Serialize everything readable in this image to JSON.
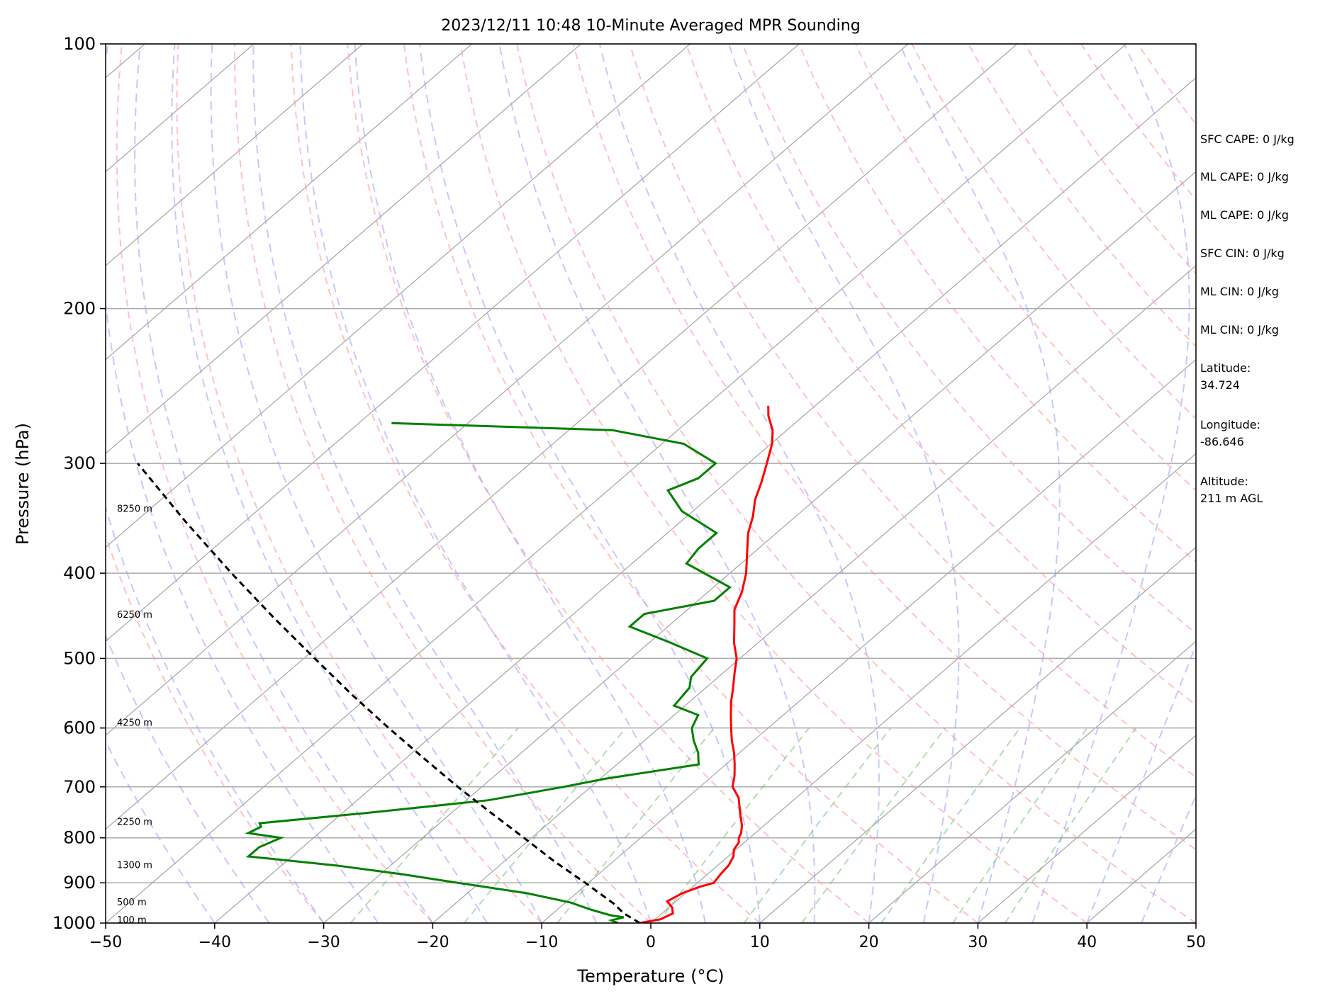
{
  "chart_data": {
    "type": "line",
    "title": "2023/12/11 10:48 10-Minute Averaged MPR Sounding",
    "xlabel": "Temperature (°C)",
    "ylabel": "Pressure (hPa)",
    "xlim": [
      -50,
      50
    ],
    "ylim": [
      1000,
      100
    ],
    "y_scale": "log",
    "skew": "skew-T log-P diagram",
    "x_ticks": [
      "−50",
      "−40",
      "−30",
      "−20",
      "−10",
      "0",
      "10",
      "20",
      "30",
      "40",
      "50"
    ],
    "x_tick_values": [
      -50,
      -40,
      -30,
      -20,
      -10,
      0,
      10,
      20,
      30,
      40,
      50
    ],
    "y_ticks": [
      "100",
      "200",
      "300",
      "400",
      "500",
      "600",
      "700",
      "800",
      "900",
      "1000"
    ],
    "y_tick_values": [
      100,
      200,
      300,
      400,
      500,
      600,
      700,
      800,
      900,
      1000
    ],
    "grid": true,
    "height_labels": [
      {
        "text": "100 m",
        "pressure": 993
      },
      {
        "text": "500 m",
        "pressure": 948
      },
      {
        "text": "1300 m",
        "pressure": 860
      },
      {
        "text": "2250 m",
        "pressure": 768
      },
      {
        "text": "4250 m",
        "pressure": 592
      },
      {
        "text": "6250 m",
        "pressure": 446
      },
      {
        "text": "8250 m",
        "pressure": 338
      }
    ],
    "series": [
      {
        "role": "temperature",
        "color": "#ff0000",
        "points": [
          {
            "p": 1000,
            "t": -1.0
          },
          {
            "p": 990,
            "t": 0.5
          },
          {
            "p": 975,
            "t": 1.0
          },
          {
            "p": 960,
            "t": 0.3
          },
          {
            "p": 945,
            "t": -0.8
          },
          {
            "p": 925,
            "t": -0.3
          },
          {
            "p": 910,
            "t": 0.6
          },
          {
            "p": 900,
            "t": 1.5
          },
          {
            "p": 880,
            "t": 1.2
          },
          {
            "p": 860,
            "t": 1.0
          },
          {
            "p": 840,
            "t": 0.5
          },
          {
            "p": 825,
            "t": -0.2
          },
          {
            "p": 810,
            "t": -0.5
          },
          {
            "p": 800,
            "t": -1.0
          },
          {
            "p": 790,
            "t": -1.3
          },
          {
            "p": 775,
            "t": -2.0
          },
          {
            "p": 750,
            "t": -3.5
          },
          {
            "p": 720,
            "t": -5.3
          },
          {
            "p": 700,
            "t": -7.0
          },
          {
            "p": 680,
            "t": -8.0
          },
          {
            "p": 660,
            "t": -9.2
          },
          {
            "p": 640,
            "t": -10.5
          },
          {
            "p": 620,
            "t": -12.0
          },
          {
            "p": 600,
            "t": -13.4
          },
          {
            "p": 580,
            "t": -14.8
          },
          {
            "p": 560,
            "t": -16.2
          },
          {
            "p": 540,
            "t": -17.5
          },
          {
            "p": 520,
            "t": -18.9
          },
          {
            "p": 500,
            "t": -20.3
          },
          {
            "p": 480,
            "t": -22.2
          },
          {
            "p": 460,
            "t": -23.9
          },
          {
            "p": 440,
            "t": -25.7
          },
          {
            "p": 420,
            "t": -26.9
          },
          {
            "p": 400,
            "t": -28.5
          },
          {
            "p": 380,
            "t": -30.5
          },
          {
            "p": 360,
            "t": -32.6
          },
          {
            "p": 345,
            "t": -33.9
          },
          {
            "p": 330,
            "t": -35.5
          },
          {
            "p": 315,
            "t": -36.8
          },
          {
            "p": 300,
            "t": -38.3
          },
          {
            "p": 285,
            "t": -39.9
          },
          {
            "p": 275,
            "t": -41.3
          },
          {
            "p": 265,
            "t": -43.2
          },
          {
            "p": 258,
            "t": -44.3
          }
        ]
      },
      {
        "role": "dewpoint",
        "color": "#008000",
        "points": [
          {
            "p": 1000,
            "t": -3.0
          },
          {
            "p": 993,
            "t": -3.9
          },
          {
            "p": 985,
            "t": -3.1
          },
          {
            "p": 980,
            "t": -4.5
          },
          {
            "p": 965,
            "t": -7.0
          },
          {
            "p": 948,
            "t": -9.5
          },
          {
            "p": 925,
            "t": -14.5
          },
          {
            "p": 900,
            "t": -22.0
          },
          {
            "p": 880,
            "t": -28.0
          },
          {
            "p": 860,
            "t": -35.0
          },
          {
            "p": 840,
            "t": -44.0
          },
          {
            "p": 820,
            "t": -44.0
          },
          {
            "p": 800,
            "t": -43.0
          },
          {
            "p": 790,
            "t": -46.5
          },
          {
            "p": 777,
            "t": -46.0
          },
          {
            "p": 770,
            "t": -46.5
          },
          {
            "p": 750,
            "t": -38.0
          },
          {
            "p": 725,
            "t": -28.0
          },
          {
            "p": 700,
            "t": -22.5
          },
          {
            "p": 685,
            "t": -19.5
          },
          {
            "p": 660,
            "t": -12.5
          },
          {
            "p": 640,
            "t": -13.8
          },
          {
            "p": 620,
            "t": -15.5
          },
          {
            "p": 600,
            "t": -17.0
          },
          {
            "p": 580,
            "t": -17.8
          },
          {
            "p": 566,
            "t": -21.0
          },
          {
            "p": 540,
            "t": -21.5
          },
          {
            "p": 525,
            "t": -22.5
          },
          {
            "p": 500,
            "t": -23.0
          },
          {
            "p": 480,
            "t": -28.0
          },
          {
            "p": 460,
            "t": -33.5
          },
          {
            "p": 445,
            "t": -33.5
          },
          {
            "p": 430,
            "t": -28.5
          },
          {
            "p": 415,
            "t": -28.5
          },
          {
            "p": 390,
            "t": -35.0
          },
          {
            "p": 375,
            "t": -35.5
          },
          {
            "p": 360,
            "t": -35.5
          },
          {
            "p": 340,
            "t": -41.0
          },
          {
            "p": 322,
            "t": -44.5
          },
          {
            "p": 312,
            "t": -43.0
          },
          {
            "p": 300,
            "t": -43.0
          },
          {
            "p": 285,
            "t": -48.0
          },
          {
            "p": 275,
            "t": -56.0
          },
          {
            "p": 270,
            "t": -77.0
          }
        ]
      },
      {
        "role": "parcel",
        "color": "#000000",
        "points": [
          {
            "p": 1000,
            "t": -1.0
          },
          {
            "p": 975,
            "t": -3.5
          },
          {
            "p": 950,
            "t": -5.5
          },
          {
            "p": 900,
            "t": -10.3
          },
          {
            "p": 850,
            "t": -15.5
          },
          {
            "p": 800,
            "t": -20.7
          },
          {
            "p": 750,
            "t": -26.3
          },
          {
            "p": 700,
            "t": -32.2
          },
          {
            "p": 650,
            "t": -38.3
          },
          {
            "p": 600,
            "t": -44.8
          },
          {
            "p": 550,
            "t": -51.7
          },
          {
            "p": 500,
            "t": -59.0
          },
          {
            "p": 450,
            "t": -67.0
          },
          {
            "p": 400,
            "t": -75.7
          },
          {
            "p": 350,
            "t": -85.3
          },
          {
            "p": 300,
            "t": -96.0
          }
        ]
      }
    ],
    "reference_lines": {
      "skewed_isotherms": {
        "color": "#808080"
      },
      "dry_adiabats": {
        "color": "#ff6666",
        "style": "dashed"
      },
      "moist_adiabats": {
        "color": "#6666ff",
        "style": "dashed"
      },
      "mixing_ratio_lines": {
        "color": "#33aa33",
        "style": "dashed"
      }
    }
  },
  "stats": [
    "SFC CAPE: 0 J/kg",
    "ML CAPE: 0 J/kg",
    "ML CAPE: 0 J/kg",
    "SFC CIN: 0 J/kg",
    "ML CIN: 0 J/kg",
    "ML CIN: 0 J/kg"
  ],
  "location": {
    "latitude_label": "Latitude:",
    "latitude": "34.724",
    "longitude_label": "Longitude:",
    "longitude": "-86.646",
    "altitude_label": "Altitude:",
    "altitude": "211 m AGL"
  }
}
